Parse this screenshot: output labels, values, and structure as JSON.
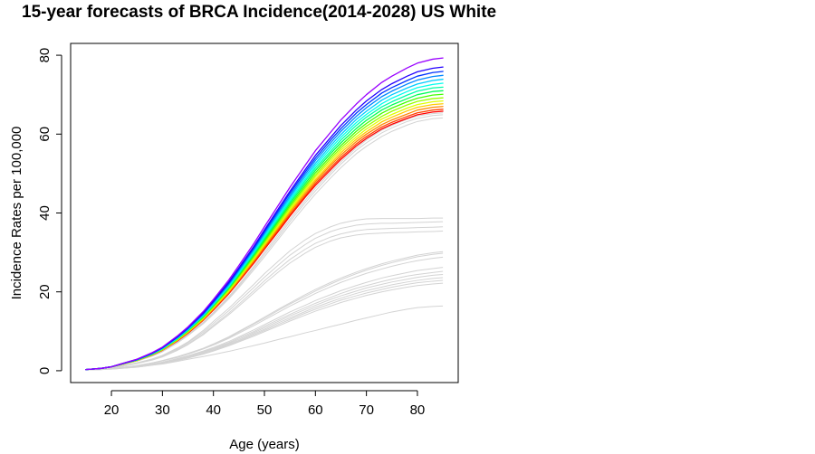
{
  "chart_data": {
    "type": "line",
    "title": "15-year forecasts of BRCA Incidence(2014-2028) US White",
    "xlabel": "Age (years)",
    "ylabel": "Incidence Rates per 100,000",
    "xlim": [
      12,
      88
    ],
    "ylim": [
      -3,
      83
    ],
    "x_ticks": [
      20,
      30,
      40,
      50,
      60,
      70,
      80
    ],
    "y_ticks": [
      0,
      20,
      40,
      60,
      80
    ],
    "grid": false,
    "legend": "none",
    "x": [
      15,
      18,
      20,
      22,
      25,
      28,
      30,
      33,
      35,
      38,
      40,
      43,
      45,
      48,
      50,
      53,
      55,
      58,
      60,
      63,
      65,
      68,
      70,
      73,
      75,
      78,
      80,
      83,
      85
    ],
    "forecast_colors": [
      "#ff0000",
      "#ff4400",
      "#ff8800",
      "#ffcc00",
      "#e0ff00",
      "#99ff00",
      "#44ff00",
      "#00ff55",
      "#00ffaa",
      "#00ffee",
      "#00ccff",
      "#0088ff",
      "#0033ff",
      "#2200ff",
      "#9900ff"
    ],
    "historical_color": "#d3d3d3",
    "series": [
      {
        "values": [
          0.3,
          0.6,
          1.0,
          1.6,
          2.6,
          4.0,
          5.2,
          7.6,
          9.5,
          12.8,
          15.4,
          19.5,
          22.6,
          27.4,
          30.8,
          35.8,
          39.2,
          44.0,
          47.0,
          51.0,
          53.6,
          57.0,
          58.9,
          61.3,
          62.5,
          64.0,
          64.9,
          65.6,
          65.8
        ]
      },
      {
        "values": [
          0.3,
          0.6,
          1.0,
          1.6,
          2.6,
          4.0,
          5.2,
          7.7,
          9.6,
          12.9,
          15.6,
          19.7,
          22.8,
          27.7,
          31.1,
          36.2,
          39.6,
          44.4,
          47.5,
          51.5,
          54.1,
          57.5,
          59.4,
          61.8,
          63.0,
          64.5,
          65.4,
          66.1,
          66.3
        ]
      },
      {
        "values": [
          0.3,
          0.6,
          1.0,
          1.6,
          2.6,
          4.0,
          5.3,
          7.8,
          9.7,
          13.0,
          15.7,
          19.9,
          23.1,
          28.0,
          31.5,
          36.6,
          40.1,
          44.9,
          48.0,
          52.1,
          54.7,
          58.1,
          60.0,
          62.4,
          63.6,
          65.1,
          66.1,
          66.8,
          67.0
        ]
      },
      {
        "values": [
          0.3,
          0.6,
          1.0,
          1.6,
          2.6,
          4.1,
          5.3,
          7.8,
          9.8,
          13.2,
          15.9,
          20.1,
          23.3,
          28.3,
          31.8,
          37.0,
          40.5,
          45.4,
          48.5,
          52.6,
          55.3,
          58.7,
          60.6,
          63.1,
          64.3,
          65.9,
          66.8,
          67.5,
          67.7
        ]
      },
      {
        "values": [
          0.3,
          0.6,
          1.0,
          1.6,
          2.6,
          4.1,
          5.4,
          7.9,
          9.9,
          13.3,
          16.0,
          20.3,
          23.6,
          28.6,
          32.2,
          37.4,
          40.9,
          45.9,
          49.1,
          53.2,
          55.9,
          59.3,
          61.3,
          63.8,
          65.0,
          66.6,
          67.5,
          68.2,
          68.4
        ]
      },
      {
        "values": [
          0.3,
          0.6,
          1.0,
          1.7,
          2.7,
          4.1,
          5.4,
          8.0,
          10.0,
          13.4,
          16.2,
          20.5,
          23.8,
          28.9,
          32.5,
          37.8,
          41.4,
          46.4,
          49.6,
          53.8,
          56.5,
          60.0,
          62.0,
          64.5,
          65.8,
          67.4,
          68.3,
          69.0,
          69.2
        ]
      },
      {
        "values": [
          0.3,
          0.6,
          1.0,
          1.7,
          2.7,
          4.2,
          5.5,
          8.1,
          10.1,
          13.6,
          16.4,
          20.8,
          24.1,
          29.3,
          32.9,
          38.3,
          41.9,
          46.9,
          50.2,
          54.4,
          57.1,
          60.7,
          62.7,
          65.3,
          66.6,
          68.2,
          69.1,
          69.9,
          70.1
        ]
      },
      {
        "values": [
          0.3,
          0.6,
          1.0,
          1.7,
          2.7,
          4.2,
          5.5,
          8.2,
          10.2,
          13.7,
          16.6,
          21.0,
          24.4,
          29.6,
          33.3,
          38.7,
          42.4,
          47.5,
          50.8,
          55.1,
          57.8,
          61.4,
          63.5,
          66.1,
          67.4,
          69.0,
          70.0,
          70.8,
          71.0
        ]
      },
      {
        "values": [
          0.3,
          0.6,
          1.0,
          1.7,
          2.8,
          4.3,
          5.6,
          8.2,
          10.3,
          13.9,
          16.7,
          21.2,
          24.6,
          29.9,
          33.7,
          39.2,
          42.9,
          48.1,
          51.4,
          55.7,
          58.5,
          62.2,
          64.3,
          66.9,
          68.2,
          69.9,
          70.9,
          71.7,
          71.9
        ]
      },
      {
        "values": [
          0.3,
          0.6,
          1.0,
          1.7,
          2.8,
          4.3,
          5.6,
          8.3,
          10.4,
          14.0,
          16.9,
          21.4,
          24.9,
          30.3,
          34.1,
          39.6,
          43.4,
          48.6,
          52.0,
          56.4,
          59.2,
          62.9,
          65.0,
          67.7,
          69.1,
          70.8,
          71.8,
          72.6,
          72.9
        ]
      },
      {
        "values": [
          0.3,
          0.6,
          1.0,
          1.7,
          2.8,
          4.4,
          5.7,
          8.4,
          10.5,
          14.2,
          17.1,
          21.7,
          25.2,
          30.6,
          34.5,
          40.1,
          43.9,
          49.2,
          52.6,
          57.1,
          59.9,
          63.7,
          65.8,
          68.6,
          70.0,
          71.7,
          72.7,
          73.6,
          73.9
        ]
      },
      {
        "values": [
          0.3,
          0.6,
          1.0,
          1.7,
          2.8,
          4.4,
          5.8,
          8.5,
          10.6,
          14.3,
          17.3,
          21.9,
          25.5,
          31.0,
          34.9,
          40.6,
          44.4,
          49.8,
          53.3,
          57.8,
          60.7,
          64.5,
          66.7,
          69.5,
          70.9,
          72.7,
          73.7,
          74.6,
          74.9
        ]
      },
      {
        "values": [
          0.3,
          0.6,
          1.0,
          1.7,
          2.8,
          4.4,
          5.8,
          8.6,
          10.8,
          14.5,
          17.5,
          22.2,
          25.8,
          31.3,
          35.3,
          41.1,
          45.0,
          50.4,
          53.9,
          58.5,
          61.4,
          65.3,
          67.5,
          70.4,
          71.8,
          73.6,
          74.7,
          75.6,
          75.9
        ]
      },
      {
        "values": [
          0.3,
          0.6,
          1.0,
          1.8,
          2.9,
          4.5,
          5.9,
          8.7,
          10.9,
          14.7,
          17.7,
          22.5,
          26.1,
          31.7,
          35.7,
          41.6,
          45.5,
          51.0,
          54.6,
          59.2,
          62.2,
          66.1,
          68.4,
          71.3,
          72.8,
          74.7,
          75.8,
          76.7,
          77.0
        ]
      },
      {
        "values": [
          0.3,
          0.6,
          1.0,
          1.8,
          2.9,
          4.6,
          6.0,
          8.9,
          11.1,
          15.0,
          18.1,
          23.0,
          26.7,
          32.4,
          36.5,
          42.5,
          46.5,
          52.1,
          55.8,
          60.5,
          63.6,
          67.6,
          70.0,
          73.1,
          74.7,
          76.8,
          78.0,
          79.0,
          79.3
        ]
      }
    ],
    "historical_series": [
      {
        "values": [
          0.3,
          0.6,
          0.9,
          1.5,
          2.4,
          3.7,
          4.8,
          7.1,
          8.9,
          11.9,
          14.3,
          18.2,
          21.1,
          25.7,
          28.9,
          33.8,
          37.1,
          41.8,
          44.8,
          48.9,
          51.5,
          55.0,
          56.9,
          59.4,
          60.7,
          62.3,
          63.2,
          63.9,
          64.1
        ]
      },
      {
        "values": [
          0.3,
          0.6,
          0.9,
          1.5,
          2.5,
          3.8,
          4.9,
          7.2,
          9.0,
          12.1,
          14.6,
          18.5,
          21.5,
          26.2,
          29.5,
          34.4,
          37.8,
          42.6,
          45.6,
          49.8,
          52.4,
          55.9,
          57.8,
          60.3,
          61.6,
          63.2,
          64.0,
          64.7,
          64.9
        ]
      },
      {
        "values": [
          0.3,
          0.6,
          0.9,
          1.5,
          2.5,
          3.8,
          5.0,
          7.3,
          9.2,
          12.3,
          14.8,
          18.8,
          21.8,
          26.6,
          30.0,
          35.0,
          38.4,
          43.2,
          46.3,
          50.4,
          53.0,
          56.5,
          58.5,
          61.0,
          62.2,
          63.8,
          64.6,
          65.2,
          65.4
        ]
      },
      {
        "values": [
          0.3,
          0.5,
          0.8,
          1.2,
          2.0,
          3.0,
          3.9,
          5.8,
          7.3,
          10.2,
          12.5,
          15.8,
          18.3,
          22.0,
          24.6,
          28.1,
          30.4,
          33.2,
          34.8,
          36.5,
          37.4,
          38.2,
          38.5,
          38.6,
          38.6,
          38.6,
          38.6,
          38.7,
          38.7
        ]
      },
      {
        "values": [
          0.3,
          0.5,
          0.8,
          1.2,
          2.0,
          2.9,
          3.8,
          5.6,
          7.1,
          9.8,
          12.0,
          15.2,
          17.6,
          21.2,
          23.7,
          27.1,
          29.3,
          32.0,
          33.6,
          35.3,
          36.1,
          36.9,
          37.2,
          37.4,
          37.4,
          37.5,
          37.6,
          37.7,
          37.8
        ]
      },
      {
        "values": [
          0.3,
          0.5,
          0.7,
          1.1,
          1.9,
          2.8,
          3.6,
          5.4,
          6.8,
          9.4,
          11.5,
          14.6,
          16.9,
          20.4,
          22.8,
          26.1,
          28.2,
          30.8,
          32.3,
          33.9,
          34.7,
          35.5,
          35.8,
          36.0,
          36.1,
          36.2,
          36.3,
          36.4,
          36.5
        ]
      },
      {
        "values": [
          0.3,
          0.5,
          0.7,
          1.1,
          1.8,
          2.7,
          3.5,
          5.2,
          6.6,
          9.1,
          11.2,
          14.2,
          16.4,
          19.8,
          22.1,
          25.3,
          27.3,
          29.8,
          31.3,
          32.9,
          33.7,
          34.4,
          34.7,
          34.9,
          35.0,
          35.1,
          35.2,
          35.3,
          35.4
        ]
      },
      {
        "values": [
          0.2,
          0.4,
          0.5,
          0.8,
          1.3,
          2.0,
          2.6,
          3.6,
          4.4,
          5.7,
          6.8,
          8.6,
          10.0,
          12.1,
          13.6,
          15.8,
          17.2,
          19.3,
          20.6,
          22.4,
          23.5,
          25.0,
          25.9,
          27.1,
          27.8,
          28.7,
          29.3,
          29.9,
          30.2
        ]
      },
      {
        "values": [
          0.2,
          0.4,
          0.5,
          0.8,
          1.3,
          2.0,
          2.5,
          3.5,
          4.3,
          5.6,
          6.7,
          8.4,
          9.8,
          11.9,
          13.3,
          15.5,
          16.9,
          18.9,
          20.2,
          22.0,
          23.1,
          24.6,
          25.5,
          26.7,
          27.4,
          28.3,
          28.9,
          29.5,
          29.8
        ]
      },
      {
        "values": [
          0.2,
          0.4,
          0.5,
          0.8,
          1.2,
          1.9,
          2.5,
          3.4,
          4.2,
          5.5,
          6.5,
          8.2,
          9.5,
          11.5,
          12.9,
          15.0,
          16.4,
          18.3,
          19.6,
          21.3,
          22.4,
          23.8,
          24.7,
          25.8,
          26.5,
          27.4,
          27.9,
          28.5,
          28.8
        ]
      },
      {
        "values": [
          0.2,
          0.4,
          0.5,
          0.7,
          1.1,
          1.7,
          2.2,
          3.1,
          3.8,
          5.0,
          5.9,
          7.4,
          8.6,
          10.4,
          11.7,
          13.6,
          14.9,
          16.6,
          17.8,
          19.3,
          20.3,
          21.6,
          22.4,
          23.5,
          24.1,
          24.9,
          25.4,
          25.9,
          26.2
        ]
      },
      {
        "values": [
          0.2,
          0.4,
          0.5,
          0.7,
          1.1,
          1.6,
          2.1,
          3.0,
          3.7,
          4.8,
          5.7,
          7.1,
          8.3,
          10.0,
          11.3,
          13.1,
          14.3,
          16.0,
          17.1,
          18.6,
          19.6,
          20.9,
          21.6,
          22.6,
          23.2,
          24.0,
          24.4,
          24.9,
          25.2
        ]
      },
      {
        "values": [
          0.2,
          0.4,
          0.5,
          0.7,
          1.0,
          1.6,
          2.0,
          2.9,
          3.6,
          4.7,
          5.5,
          6.9,
          8.0,
          9.7,
          10.9,
          12.7,
          13.9,
          15.5,
          16.6,
          18.1,
          19.0,
          20.2,
          21.0,
          21.9,
          22.5,
          23.2,
          23.7,
          24.2,
          24.4
        ]
      },
      {
        "values": [
          0.2,
          0.3,
          0.5,
          0.7,
          1.0,
          1.5,
          1.9,
          2.8,
          3.4,
          4.5,
          5.3,
          6.7,
          7.7,
          9.4,
          10.5,
          12.3,
          13.4,
          15.0,
          16.1,
          17.5,
          18.4,
          19.6,
          20.3,
          21.2,
          21.8,
          22.5,
          22.9,
          23.4,
          23.6
        ]
      },
      {
        "values": [
          0.2,
          0.3,
          0.5,
          0.7,
          1.0,
          1.5,
          1.9,
          2.7,
          3.3,
          4.4,
          5.2,
          6.5,
          7.5,
          9.1,
          10.2,
          11.9,
          13.0,
          14.6,
          15.6,
          17.0,
          17.9,
          19.0,
          19.7,
          20.6,
          21.2,
          21.9,
          22.3,
          22.7,
          22.9
        ]
      },
      {
        "values": [
          0.2,
          0.3,
          0.4,
          0.6,
          0.9,
          1.4,
          1.8,
          2.6,
          3.2,
          4.2,
          5.0,
          6.3,
          7.3,
          8.8,
          9.9,
          11.5,
          12.6,
          14.1,
          15.1,
          16.4,
          17.3,
          18.4,
          19.1,
          20.0,
          20.5,
          21.2,
          21.6,
          22.0,
          22.2
        ]
      },
      {
        "values": [
          0.2,
          0.3,
          0.4,
          0.6,
          0.9,
          1.4,
          1.7,
          2.4,
          2.9,
          3.6,
          4.1,
          4.9,
          5.5,
          6.4,
          7.0,
          8.0,
          8.6,
          9.6,
          10.2,
          11.2,
          11.8,
          12.8,
          13.4,
          14.3,
          14.9,
          15.6,
          16.0,
          16.3,
          16.4
        ]
      }
    ]
  }
}
